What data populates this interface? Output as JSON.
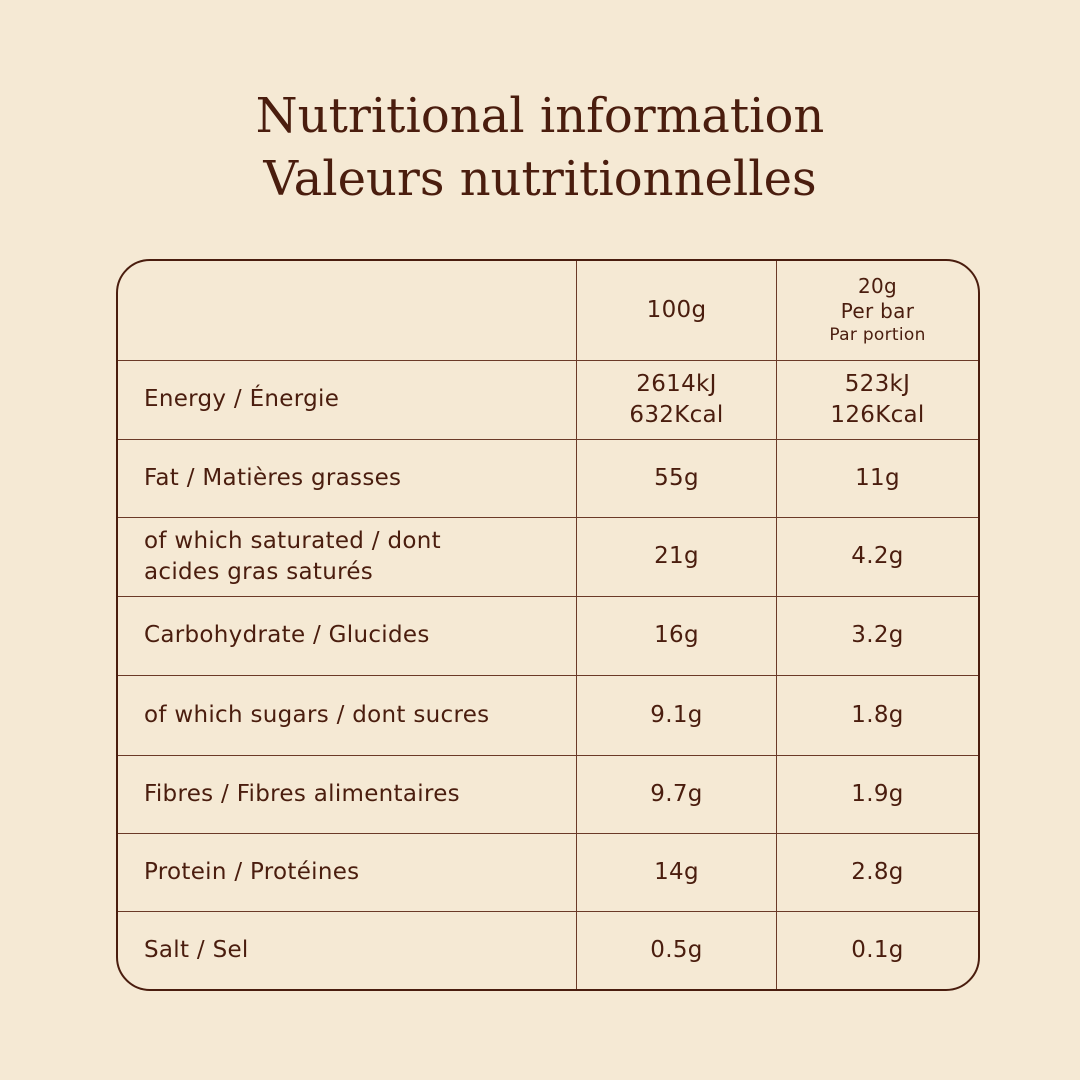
{
  "title_en": "Nutritional information",
  "title_fr": "Valeurs nutritionnelles",
  "header": {
    "col1": "100g",
    "col2_line1": "20g",
    "col2_line2": "Per bar",
    "col2_line3": "Par portion"
  },
  "rows": [
    {
      "label": "Energy / Énergie",
      "v100": [
        "2614kJ",
        "632Kcal"
      ],
      "vbar": [
        "523kJ",
        "126Kcal"
      ]
    },
    {
      "label": "Fat / Matières grasses",
      "v100": "55g",
      "vbar": "11g"
    },
    {
      "label": "of which saturated / dont acides gras saturés",
      "v100": "21g",
      "vbar": "4.2g"
    },
    {
      "label": "Carbohydrate / Glucides",
      "v100": "16g",
      "vbar": "3.2g"
    },
    {
      "label": "of which sugars / dont sucres",
      "v100": "9.1g",
      "vbar": "1.8g"
    },
    {
      "label": "Fibres / Fibres alimentaires",
      "v100": "9.7g",
      "vbar": "1.9g"
    },
    {
      "label": "Protein / Protéines",
      "v100": "14g",
      "vbar": "2.8g"
    },
    {
      "label": "Salt / Sel",
      "v100": "0.5g",
      "vbar": "0.1g"
    }
  ],
  "colors": {
    "background": "#f5e9d4",
    "text": "#4a1d0e"
  }
}
